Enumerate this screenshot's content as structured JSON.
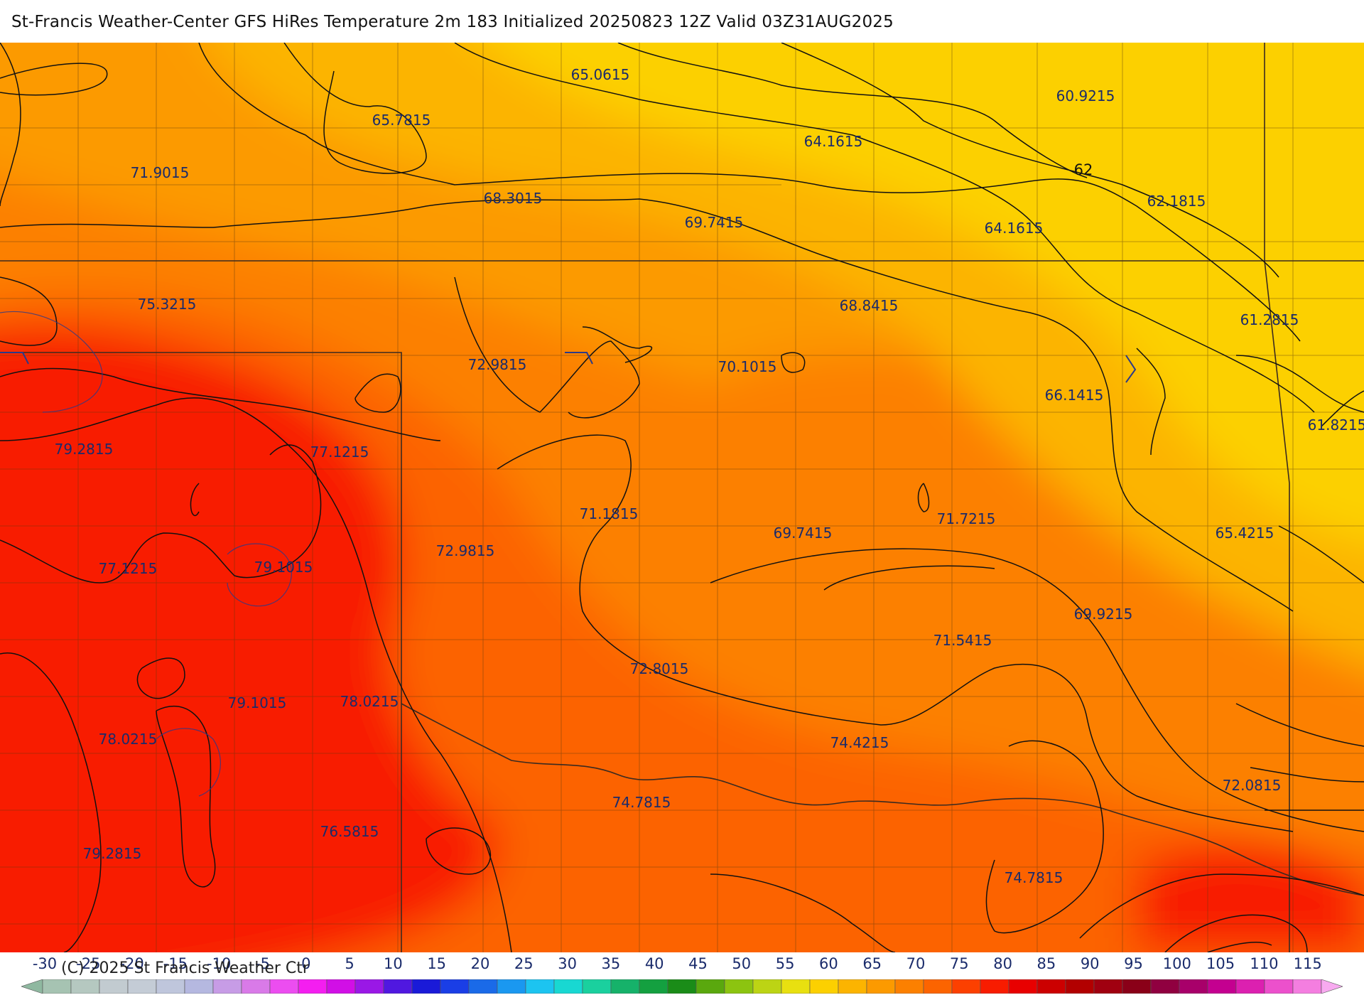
{
  "title": "St-Francis Weather-Center GFS HiRes Temperature 2m  183 Initialized 20250823 12Z Valid 03Z31AUG2025",
  "copyright": "(C) 2025 St Francis Weather Ctr",
  "contour_label": "62",
  "value_labels": [
    "65.0615",
    "60.9215",
    "65.7815",
    "64.1615",
    "71.9015",
    "68.3015",
    "69.7415",
    "64.1615",
    "62.1815",
    "75.3215",
    "68.8415",
    "61.2815",
    "72.9815",
    "70.1015",
    "66.1415",
    "61.8215",
    "79.2815",
    "77.1215",
    "71.1815",
    "71.7215",
    "69.7415",
    "65.4215",
    "72.9815",
    "77.1215",
    "79.1015",
    "69.9215",
    "71.5415",
    "72.8015",
    "79.1015",
    "78.0215",
    "78.0215",
    "74.4215",
    "72.0815",
    "74.7815",
    "76.5815",
    "79.2815",
    "74.7815"
  ],
  "legend": {
    "ticks": [
      "-30",
      "-25",
      "-20",
      "-15",
      "-10",
      "-5",
      "0",
      "5",
      "10",
      "15",
      "20",
      "25",
      "30",
      "35",
      "40",
      "45",
      "50",
      "55",
      "60",
      "65",
      "70",
      "75",
      "80",
      "85",
      "90",
      "95",
      "100",
      "105",
      "110",
      "115"
    ],
    "colors": [
      "#8fb8a0",
      "#a6c3b2",
      "#b5c8c0",
      "#c2cbd0",
      "#c4ccd6",
      "#bfc6dc",
      "#b5b8e0",
      "#c79ce6",
      "#d97ae8",
      "#ec4df0",
      "#f41ef0",
      "#d10fe6",
      "#9a18e6",
      "#5018e0",
      "#1a1ad8",
      "#1a3ee6",
      "#1a6ae8",
      "#1a98f0",
      "#1cc4f0",
      "#18d8d2",
      "#1ad09e",
      "#16b26a",
      "#14a040",
      "#1a8c18",
      "#5aa80e",
      "#8cc410",
      "#bcd414",
      "#e8e010",
      "#fcd000",
      "#fcb400",
      "#fc9a00",
      "#fc8000",
      "#fc6400",
      "#fc4000",
      "#f81c00",
      "#e80000",
      "#cc0000",
      "#b20000",
      "#a00010",
      "#8a0018",
      "#900040",
      "#a8006a",
      "#c40090",
      "#dc20b0",
      "#ec50cc",
      "#f47ee0",
      "#f8aaf0"
    ]
  }
}
